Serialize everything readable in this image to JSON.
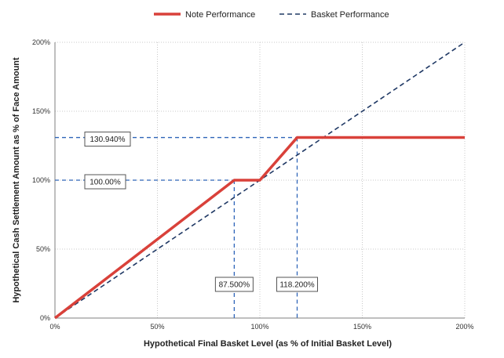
{
  "chart_data": {
    "type": "line",
    "xlabel": "Hypothetical Final Basket Level (as % of Initial Basket Level)",
    "ylabel": "Hypothetical Cash Settlement Amount as % of Face Amount",
    "xlim": [
      0,
      200
    ],
    "ylim": [
      0,
      200
    ],
    "x_ticks": [
      0,
      50,
      100,
      150,
      200
    ],
    "x_tick_labels": [
      "0%",
      "50%",
      "100%",
      "150%",
      "200%"
    ],
    "y_ticks": [
      0,
      50,
      100,
      150,
      200
    ],
    "y_tick_labels": [
      "0%",
      "50%",
      "100%",
      "150%",
      "200%"
    ],
    "grid": "dotted",
    "legend_position": "top",
    "series": [
      {
        "name": "Note Performance",
        "color": "#d9413a",
        "style": "solid",
        "x": [
          0,
          87.5,
          100,
          118.2,
          200
        ],
        "y": [
          0,
          100,
          100,
          130.94,
          130.94
        ]
      },
      {
        "name": "Basket Performance",
        "color": "#1f3864",
        "style": "dashed",
        "x": [
          0,
          200
        ],
        "y": [
          0,
          200
        ]
      }
    ],
    "annotations": [
      {
        "label": "130.940%",
        "kind": "horizontal-ref",
        "x": 118.2,
        "y": 130.94
      },
      {
        "label": "100.00%",
        "kind": "horizontal-ref",
        "x": 87.5,
        "y": 100
      },
      {
        "label": "87.500%",
        "kind": "vertical-ref",
        "x": 87.5,
        "y": 100
      },
      {
        "label": "118.200%",
        "kind": "vertical-ref",
        "x": 118.2,
        "y": 130.94
      }
    ]
  }
}
